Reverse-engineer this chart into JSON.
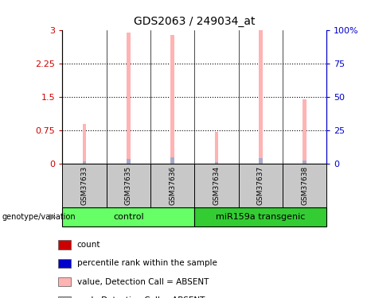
{
  "title": "GDS2063 / 249034_at",
  "samples": [
    "GSM37633",
    "GSM37635",
    "GSM37636",
    "GSM37634",
    "GSM37637",
    "GSM37638"
  ],
  "pink_values": [
    0.9,
    2.93,
    2.88,
    0.72,
    3.0,
    1.45
  ],
  "blue_values": [
    0.05,
    0.12,
    0.14,
    0.04,
    0.13,
    0.07
  ],
  "ylim_left": [
    0,
    3
  ],
  "ylim_right": [
    0,
    100
  ],
  "yticks_left": [
    0,
    0.75,
    1.5,
    2.25,
    3
  ],
  "yticks_right": [
    0,
    25,
    50,
    75,
    100
  ],
  "ytick_labels_left": [
    "0",
    "0.75",
    "1.5",
    "2.25",
    "3"
  ],
  "ytick_labels_right": [
    "0",
    "25",
    "50",
    "75",
    "100%"
  ],
  "hlines": [
    0.75,
    1.5,
    2.25
  ],
  "left_axis_color": "#cc0000",
  "right_axis_color": "#0000cc",
  "pink_color": "#ffb3b3",
  "blue_color": "#aaaacc",
  "bar_width": 0.08,
  "control_color": "#66ff66",
  "transgenic_color": "#33cc33",
  "group_bg": "#c8c8c8",
  "legend_items": [
    {
      "color": "#cc0000",
      "label": "count"
    },
    {
      "color": "#0000cc",
      "label": "percentile rank within the sample"
    },
    {
      "color": "#ffb3b3",
      "label": "value, Detection Call = ABSENT"
    },
    {
      "color": "#aaaacc",
      "label": "rank, Detection Call = ABSENT"
    }
  ],
  "genotype_label": "genotype/variation"
}
